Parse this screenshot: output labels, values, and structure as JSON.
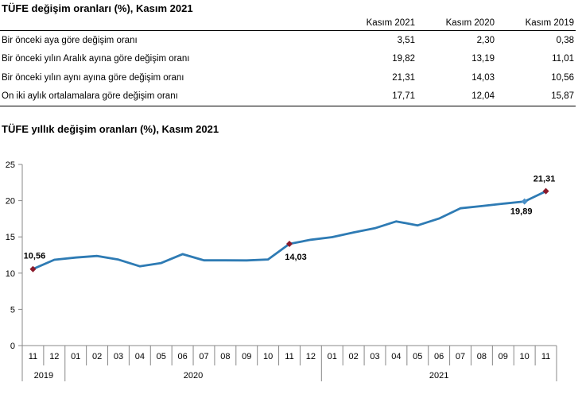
{
  "table": {
    "title": "TÜFE değişim oranları (%), Kasım 2021",
    "columns": [
      "Kasım 2021",
      "Kasım 2020",
      "Kasım 2019"
    ],
    "rows": [
      {
        "label": "Bir önceki aya göre değişim oranı",
        "values": [
          "3,51",
          "2,30",
          "0,38"
        ]
      },
      {
        "label": "Bir önceki yılın Aralık ayına göre değişim oranı",
        "values": [
          "19,82",
          "13,19",
          "11,01"
        ]
      },
      {
        "label": "Bir önceki yılın aynı ayına göre değişim oranı",
        "values": [
          "21,31",
          "14,03",
          "10,56"
        ]
      },
      {
        "label": "On iki aylık ortalamalara göre değişim oranı",
        "values": [
          "17,71",
          "12,04",
          "15,87"
        ]
      }
    ]
  },
  "chart_data": {
    "type": "line",
    "title": "TÜFE yıllık değişim oranları (%), Kasım 2021",
    "months": [
      "11",
      "12",
      "01",
      "02",
      "03",
      "04",
      "05",
      "06",
      "07",
      "08",
      "09",
      "10",
      "11",
      "12",
      "01",
      "02",
      "03",
      "04",
      "05",
      "06",
      "07",
      "08",
      "09",
      "10",
      "11"
    ],
    "years": [
      {
        "label": "2019",
        "start": 0,
        "end": 2
      },
      {
        "label": "2020",
        "start": 2,
        "end": 14
      },
      {
        "label": "2021",
        "start": 14,
        "end": 25
      }
    ],
    "values": [
      10.56,
      11.84,
      12.15,
      12.37,
      11.86,
      10.94,
      11.39,
      12.62,
      11.76,
      11.77,
      11.75,
      11.89,
      14.03,
      14.6,
      14.97,
      15.61,
      16.19,
      17.14,
      16.59,
      17.53,
      18.95,
      19.25,
      19.58,
      19.89,
      21.31
    ],
    "yticks": [
      0,
      5,
      10,
      15,
      20,
      25
    ],
    "ylim": [
      0,
      25
    ],
    "highlights": [
      {
        "index": 0,
        "label": "10,56",
        "marker": "diamond"
      },
      {
        "index": 12,
        "label": "14,03",
        "marker": "diamond"
      },
      {
        "index": 23,
        "label": "19,89",
        "marker": "diamond-light"
      },
      {
        "index": 24,
        "label": "21,31",
        "marker": "diamond"
      }
    ],
    "colors": {
      "line": "#2e7bb4",
      "marker": "#8b1a2b",
      "marker_light": "#4a90c8",
      "axis": "#888888"
    },
    "grid": false
  }
}
